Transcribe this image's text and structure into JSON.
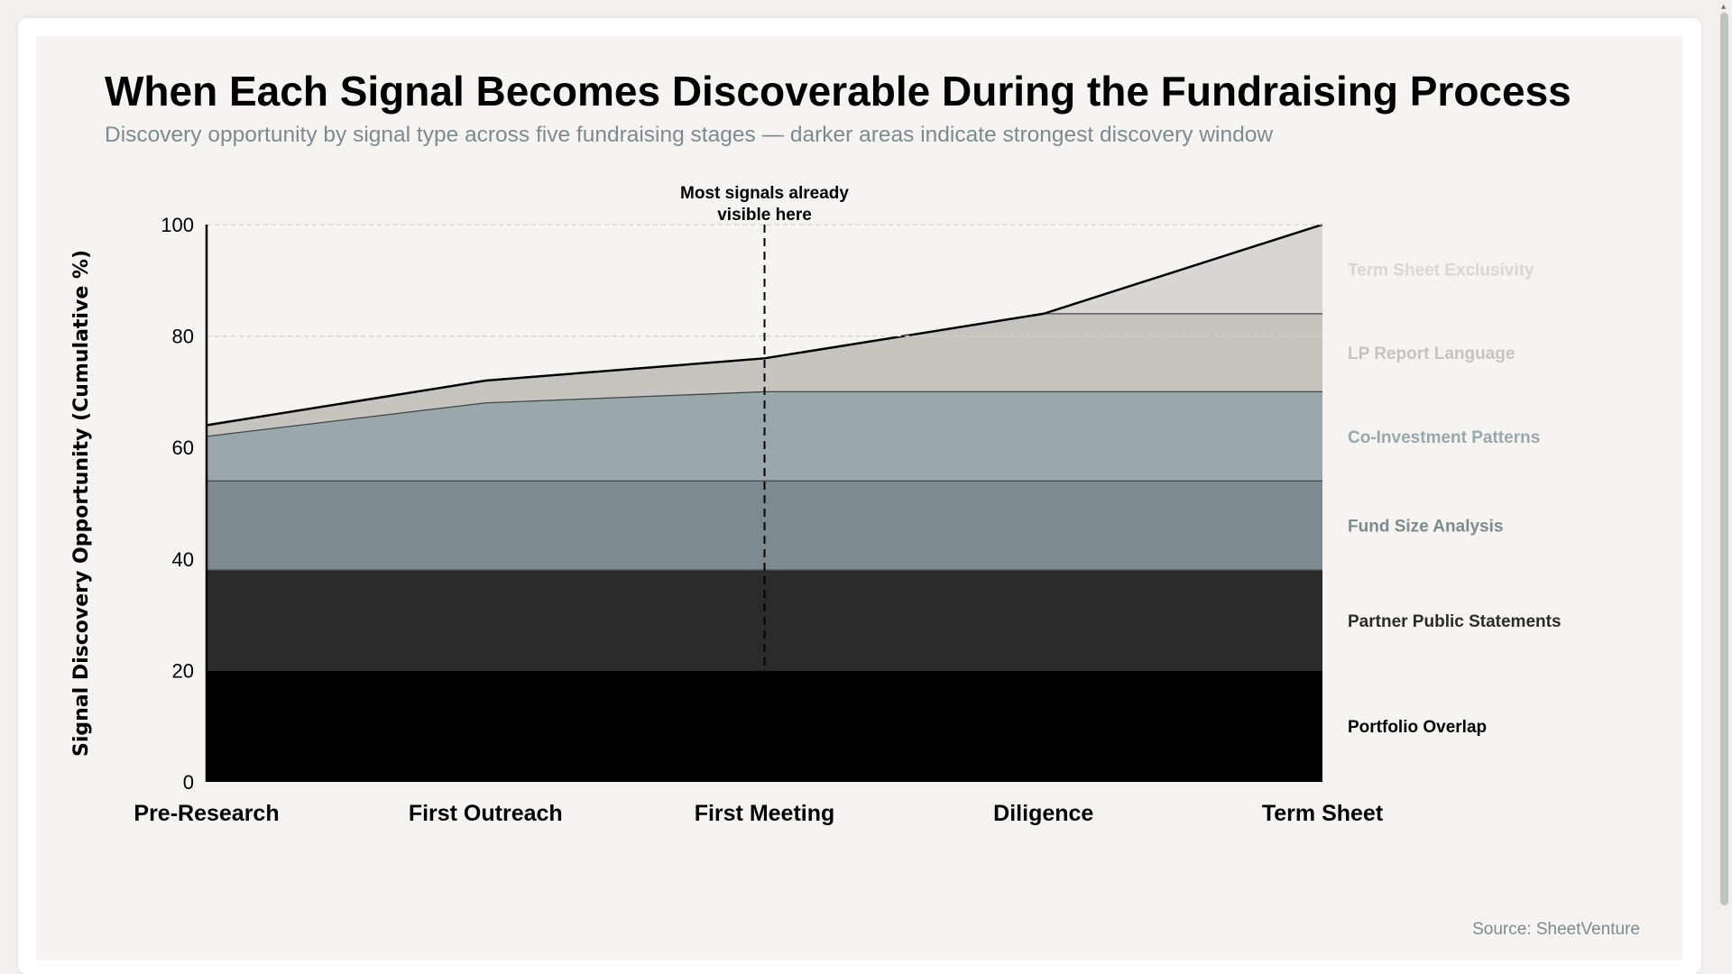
{
  "title": "When Each Signal Becomes Discoverable During the Fundraising Process",
  "subtitle": "Discovery opportunity by signal type across five fundraising stages — darker areas indicate strongest discovery window",
  "source": "Source: SheetVenture",
  "chart_data": {
    "type": "area",
    "stacked": true,
    "categories": [
      "Pre-Research",
      "First Outreach",
      "First Meeting",
      "Diligence",
      "Term Sheet"
    ],
    "ylabel": "Signal Discovery Opportunity (Cumulative %)",
    "ylim": [
      0,
      100
    ],
    "yticks": [
      0,
      20,
      40,
      60,
      80,
      100
    ],
    "grid": "horizontal dashed at 80 and 100",
    "legend_placement": "right (inline labels)",
    "series": [
      {
        "name": "Portfolio Overlap",
        "values": [
          20,
          20,
          20,
          20,
          20
        ],
        "color": "#000000"
      },
      {
        "name": "Partner Public Statements",
        "values": [
          18,
          18,
          18,
          18,
          18
        ],
        "color": "#2b2b2b"
      },
      {
        "name": "Fund Size Analysis",
        "values": [
          16,
          16,
          16,
          16,
          16
        ],
        "color": "#7d8b91"
      },
      {
        "name": "Co-Investment Patterns",
        "values": [
          8,
          14,
          16,
          16,
          16
        ],
        "color": "#9aa7ab"
      },
      {
        "name": "LP Report Language",
        "values": [
          2,
          4,
          6,
          14,
          14
        ],
        "color": "#c5c4bf"
      },
      {
        "name": "Term Sheet Exclusivity",
        "values": [
          0,
          0,
          0,
          0,
          16
        ],
        "color": "#d8d7d3"
      }
    ],
    "annotation": {
      "category": "First Meeting",
      "text_line1": "Most signals already",
      "text_line2": "visible here"
    }
  }
}
